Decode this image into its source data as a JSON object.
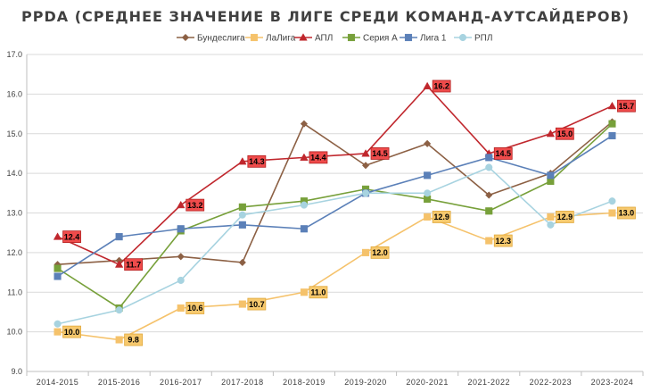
{
  "chart_data": {
    "type": "line",
    "title": "PPDA (СРЕДНЕЕ ЗНАЧЕНИЕ В ЛИГЕ СРЕДИ КОМАНД-АУТСАЙДЕРОВ)",
    "xlabel": "",
    "ylabel": "",
    "ylim": [
      9.0,
      17.0
    ],
    "ytick_step": 1.0,
    "y_tick_labels": [
      "9.0",
      "10.0",
      "11.0",
      "12.0",
      "13.0",
      "14.0",
      "15.0",
      "16.0",
      "17.0"
    ],
    "grid": "horizontal",
    "legend_position": "top",
    "categories": [
      "2014-2015",
      "2015-2016",
      "2016-2017",
      "2017-2018",
      "2018-2019",
      "2019-2020",
      "2020-2021",
      "2021-2022",
      "2022-2023",
      "2023-2024"
    ],
    "series": [
      {
        "name": "Бундеслига",
        "color": "#8c6044",
        "marker": "diamond",
        "values": [
          11.7,
          11.8,
          11.9,
          11.75,
          15.25,
          14.2,
          14.75,
          13.45,
          14.0,
          15.3
        ],
        "labels": null
      },
      {
        "name": "ЛаЛига",
        "color": "#f5c26b",
        "marker": "square",
        "values": [
          10.0,
          9.8,
          10.6,
          10.7,
          11.0,
          12.0,
          12.9,
          12.3,
          12.9,
          13.0
        ],
        "labels": [
          "10.0",
          "9.8",
          "10.6",
          "10.7",
          "11.0",
          "12.0",
          "12.9",
          "12.3",
          "12.9",
          "13.0"
        ]
      },
      {
        "name": "АПЛ",
        "color": "#c0272d",
        "marker": "triangle",
        "values": [
          12.4,
          11.7,
          13.2,
          14.3,
          14.4,
          14.5,
          16.2,
          14.5,
          15.0,
          15.7
        ],
        "labels": [
          "12.4",
          "11.7",
          "13.2",
          "14.3",
          "14.4",
          "14.5",
          "16.2",
          "14.5",
          "15.0",
          "15.7"
        ]
      },
      {
        "name": "Серия А",
        "color": "#77a03a",
        "marker": "square",
        "values": [
          11.6,
          10.6,
          12.55,
          13.15,
          13.3,
          13.6,
          13.35,
          13.05,
          13.8,
          15.25
        ],
        "labels": null
      },
      {
        "name": "Лига 1",
        "color": "#5b80b8",
        "marker": "square",
        "values": [
          11.4,
          12.4,
          12.6,
          12.7,
          12.6,
          13.5,
          13.95,
          14.4,
          13.95,
          14.95
        ],
        "labels": null
      },
      {
        "name": "РПЛ",
        "color": "#a7d3e0",
        "marker": "circle",
        "values": [
          10.2,
          10.55,
          11.3,
          12.95,
          13.2,
          13.5,
          13.5,
          14.15,
          12.7,
          13.3
        ],
        "labels": null
      }
    ],
    "label_styles": {
      "ЛаЛига": {
        "fill": "#f7c96e",
        "stroke": "#e0a83b"
      },
      "АПЛ": {
        "fill": "#ef4b4b",
        "stroke": "#b32020"
      }
    }
  }
}
